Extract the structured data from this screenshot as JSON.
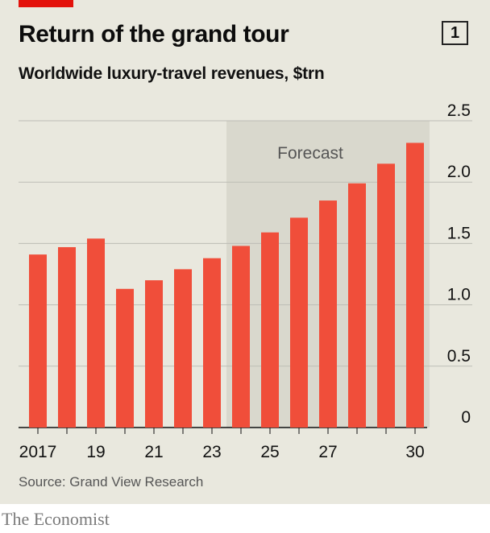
{
  "header": {
    "title": "Return of the grand tour",
    "subtitle": "Worldwide luxury-travel revenues, $trn",
    "chart_number": "1"
  },
  "footer": {
    "source": "Source: Grand View Research",
    "brand": "The Economist"
  },
  "colors": {
    "bar": "#f04e3a",
    "forecast_shade": "#d9d8cd",
    "gridline": "#bdbdb5",
    "accent_tag": "#e3120b",
    "panel": "#e9e8de"
  },
  "chart_data": {
    "type": "bar",
    "title": "Return of the grand tour",
    "subtitle": "Worldwide luxury-travel revenues, $trn",
    "xlabel": "",
    "ylabel": "$trn",
    "categories": [
      "2017",
      "2018",
      "2019",
      "2020",
      "2021",
      "2022",
      "2023",
      "2024",
      "2025",
      "2026",
      "2027",
      "2028",
      "2029",
      "2030"
    ],
    "x_tick_labels": [
      "2017",
      "",
      "19",
      "",
      "21",
      "",
      "23",
      "",
      "25",
      "",
      "27",
      "",
      "",
      "30"
    ],
    "values": [
      1.41,
      1.47,
      1.54,
      1.13,
      1.2,
      1.29,
      1.38,
      1.48,
      1.59,
      1.71,
      1.85,
      1.99,
      2.15,
      2.32
    ],
    "ylim": [
      0,
      2.5
    ],
    "y_ticks": [
      0,
      0.5,
      1.0,
      1.5,
      2.0,
      2.5
    ],
    "y_tick_labels": [
      "0",
      "0.5",
      "1.0",
      "1.5",
      "2.0",
      "2.5"
    ],
    "y_axis_side": "right",
    "grid": true,
    "forecast": {
      "label": "Forecast",
      "start_category": "2024",
      "end_category": "2030"
    }
  }
}
